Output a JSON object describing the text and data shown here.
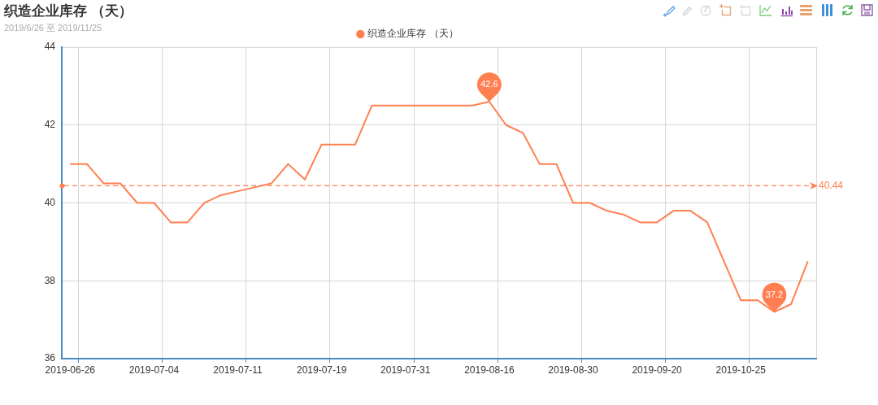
{
  "chart_data": {
    "type": "line",
    "title": "织造企业库存 （天）",
    "subtitle": "2019/6/26 至 2019/11/25",
    "categories": [
      "2019-06-26",
      null,
      null,
      null,
      null,
      "2019-07-04",
      null,
      null,
      null,
      null,
      "2019-07-11",
      null,
      null,
      null,
      null,
      "2019-07-19",
      null,
      null,
      null,
      null,
      "2019-07-31",
      null,
      null,
      null,
      null,
      "2019-08-16",
      null,
      null,
      null,
      null,
      "2019-08-30",
      null,
      null,
      null,
      null,
      "2019-09-20",
      null,
      null,
      null,
      null,
      "2019-10-25",
      null,
      null,
      null,
      null
    ],
    "series": [
      {
        "name": "织造企业库存 （天）",
        "color": "#ff7f50",
        "values": [
          41,
          41,
          40.5,
          40.5,
          40,
          40,
          39.5,
          39.5,
          40,
          40.2,
          40.3,
          40.4,
          40.5,
          41,
          40.6,
          41.5,
          41.5,
          41.5,
          42.5,
          42.5,
          42.5,
          42.5,
          42.5,
          42.5,
          42.5,
          42.6,
          42,
          41.8,
          41,
          41,
          40,
          40,
          39.8,
          39.7,
          39.5,
          39.5,
          39.8,
          39.8,
          39.5,
          38.5,
          37.5,
          37.5,
          37.2,
          37.4,
          38.5
        ],
        "value_labels": [
          null,
          null,
          null,
          null,
          null,
          null,
          null,
          null,
          null,
          null,
          null,
          null,
          null,
          null,
          null,
          null,
          null,
          null,
          null,
          null,
          null,
          null,
          null,
          null,
          null,
          "42.6",
          null,
          null,
          null,
          null,
          null,
          null,
          null,
          null,
          null,
          null,
          null,
          null,
          null,
          null,
          null,
          null,
          "37.2",
          null,
          null
        ]
      }
    ],
    "ylim": [
      36,
      44
    ],
    "yticks": [
      36,
      38,
      40,
      42,
      44
    ],
    "grid": true,
    "legend": "top",
    "marker": "none",
    "line_style": "solid",
    "ref_lines": [
      {
        "axis": "y",
        "value": 40.44,
        "label": "40.44",
        "color": "#ff7f50",
        "line_style": "dashed"
      }
    ]
  }
}
